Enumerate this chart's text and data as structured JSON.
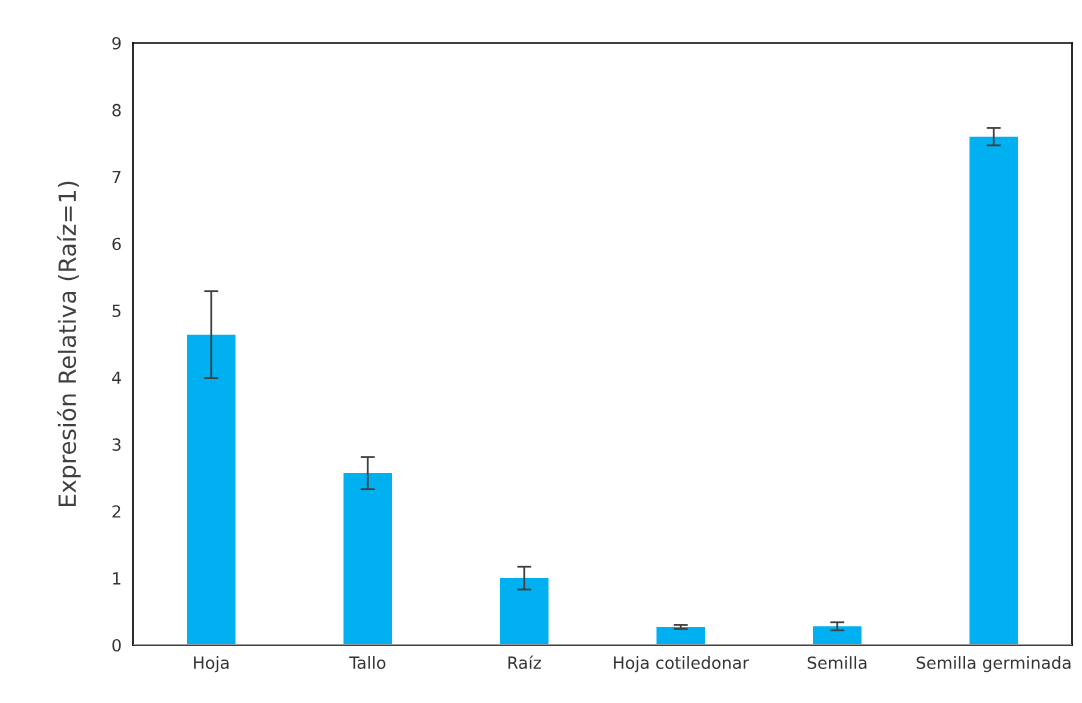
{
  "chart_data": {
    "type": "bar",
    "ylabel": "Expresión Relativa (Raíz=1)",
    "categories": [
      "Hoja",
      "Tallo",
      "Raíz",
      "Hoja cotiledonar",
      "Semilla",
      "Semilla germinada"
    ],
    "values": [
      4.64,
      2.57,
      1.0,
      0.27,
      0.28,
      7.6
    ],
    "errors": [
      0.65,
      0.24,
      0.17,
      0.03,
      0.06,
      0.13
    ],
    "color": "#00b0f0",
    "ylim": [
      0,
      9
    ],
    "yticks": [
      0,
      1,
      2,
      3,
      4,
      5,
      6,
      7,
      8,
      9
    ],
    "grid": false
  }
}
